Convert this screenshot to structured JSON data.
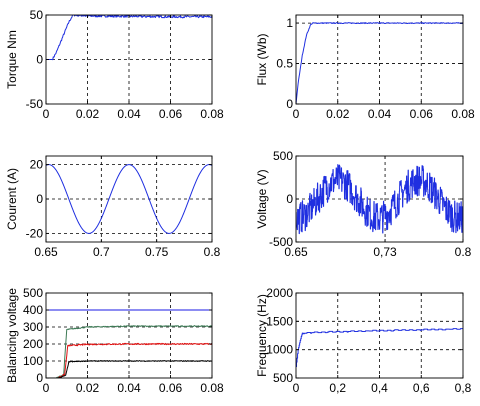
{
  "chart_data": [
    {
      "id": "torque",
      "type": "line",
      "ylabel": "Torque Nm",
      "xlim": [
        0,
        0.08
      ],
      "ylim": [
        -50,
        50
      ],
      "xticks": [
        0,
        0.02,
        0.04,
        0.06,
        0.08
      ],
      "xticklabels": [
        "0",
        "0.02",
        "0.04",
        "0.06",
        "0.08"
      ],
      "yticks": [
        -50,
        0,
        50
      ],
      "yticklabels": [
        "-50",
        "0",
        "50"
      ],
      "grid": true,
      "series": [
        {
          "color": "#1f2fe0",
          "style": "noisy",
          "noise": 1.2,
          "x": [
            0,
            0.003,
            0.005,
            0.008,
            0.011,
            0.013,
            0.02,
            0.04,
            0.06,
            0.08
          ],
          "y": [
            0,
            0,
            8,
            25,
            42,
            50,
            49,
            48.5,
            48,
            48
          ]
        }
      ]
    },
    {
      "id": "flux",
      "type": "line",
      "ylabel": "Flux (Wb)",
      "xlim": [
        0,
        0.08
      ],
      "ylim": [
        0,
        1.1
      ],
      "xticks": [
        0,
        0.02,
        0.04,
        0.06,
        0.08
      ],
      "xticklabels": [
        "0",
        "0.02",
        "0.04",
        "0.06",
        "0.08"
      ],
      "yticks": [
        0,
        0.5,
        1
      ],
      "yticklabels": [
        "0",
        "0.5",
        "1"
      ],
      "grid": true,
      "series": [
        {
          "color": "#1f2fe0",
          "style": "noisy",
          "noise": 0.006,
          "x": [
            0,
            0.001,
            0.003,
            0.005,
            0.007,
            0.008,
            0.02,
            0.04,
            0.06,
            0.08
          ],
          "y": [
            0,
            0.25,
            0.6,
            0.85,
            0.98,
            1.0,
            1.0,
            1.0,
            1.0,
            1.0
          ]
        }
      ]
    },
    {
      "id": "current",
      "type": "line",
      "ylabel": "Courent (A)",
      "xlim": [
        0.65,
        0.8
      ],
      "ylim": [
        -25,
        25
      ],
      "xticks": [
        0.65,
        0.7,
        0.75,
        0.8
      ],
      "xticklabels": [
        "0.65",
        "0.7",
        "0.75",
        "0.8"
      ],
      "yticks": [
        -20,
        0,
        20
      ],
      "yticklabels": [
        "-20",
        "0",
        "20"
      ],
      "grid": true,
      "series": [
        {
          "color": "#1f2fe0",
          "style": "sine",
          "amplitude": 20,
          "period": 0.0725,
          "peak_x": 0.6525
        }
      ]
    },
    {
      "id": "voltage",
      "type": "line",
      "ylabel": "Voltage (V)",
      "xlim": [
        0.65,
        0.8
      ],
      "ylim": [
        -500,
        500
      ],
      "xticks": [
        0.65,
        0.73,
        0.8
      ],
      "xticklabels": [
        "0.65",
        "0,73",
        "0.8"
      ],
      "yticks": [
        -500,
        0,
        500
      ],
      "yticklabels": [
        "-500",
        "0",
        "500"
      ],
      "grid": true,
      "series": [
        {
          "color": "#1f2fe0",
          "style": "switching",
          "amplitude": 220,
          "period": 0.0725,
          "peak_x": 0.6875,
          "ripple": 190
        }
      ]
    },
    {
      "id": "balancing",
      "type": "line",
      "ylabel": "Balancing voltage",
      "xlim": [
        0,
        0.08
      ],
      "ylim": [
        0,
        500
      ],
      "xticks": [
        0,
        0.02,
        0.04,
        0.06,
        0.08
      ],
      "xticklabels": [
        "0",
        "0.02",
        "0.04",
        "0.06",
        "0.08"
      ],
      "yticks": [
        0,
        100,
        200,
        300,
        400,
        500
      ],
      "yticklabels": [
        "0",
        "100",
        "200",
        "300",
        "400",
        "500"
      ],
      "grid": true,
      "series": [
        {
          "color": "#1a1ae6",
          "style": "noisy",
          "noise": 0,
          "x": [
            0,
            0.08
          ],
          "y": [
            400,
            400
          ]
        },
        {
          "color": "#3d7a55",
          "style": "noisy",
          "noise": 3,
          "x": [
            0,
            0.005,
            0.0085,
            0.01,
            0.02,
            0.04,
            0.08
          ],
          "y": [
            0,
            0,
            20,
            285,
            300,
            305,
            305
          ]
        },
        {
          "color": "#e01010",
          "style": "noisy",
          "noise": 4,
          "x": [
            0,
            0.0055,
            0.009,
            0.0105,
            0.02,
            0.04,
            0.08
          ],
          "y": [
            0,
            0,
            20,
            190,
            198,
            200,
            200
          ]
        },
        {
          "color": "#000000",
          "style": "noisy",
          "noise": 2.5,
          "x": [
            0,
            0.006,
            0.0095,
            0.011,
            0.02,
            0.04,
            0.08
          ],
          "y": [
            0,
            0,
            15,
            95,
            100,
            100,
            100
          ]
        }
      ]
    },
    {
      "id": "frequency",
      "type": "line",
      "ylabel": "Frequency (Hz)",
      "xlim": [
        0,
        0.8
      ],
      "ylim": [
        500,
        2000
      ],
      "xticks": [
        0,
        0.2,
        0.4,
        0.6,
        0.8
      ],
      "xticklabels": [
        "0",
        "0,2",
        "0,4",
        "0,6",
        "0,8"
      ],
      "yticks": [
        500,
        1000,
        1500,
        2000
      ],
      "yticklabels": [
        "500",
        "1000",
        "1500",
        "2000"
      ],
      "grid": true,
      "series": [
        {
          "color": "#1f2fe0",
          "style": "steps",
          "noise": 12,
          "x": [
            0,
            0.01,
            0.02,
            0.03,
            0.05,
            0.1,
            0.2,
            0.4,
            0.6,
            0.8
          ],
          "y": [
            700,
            1000,
            1150,
            1280,
            1290,
            1300,
            1310,
            1330,
            1345,
            1360
          ]
        }
      ]
    }
  ]
}
